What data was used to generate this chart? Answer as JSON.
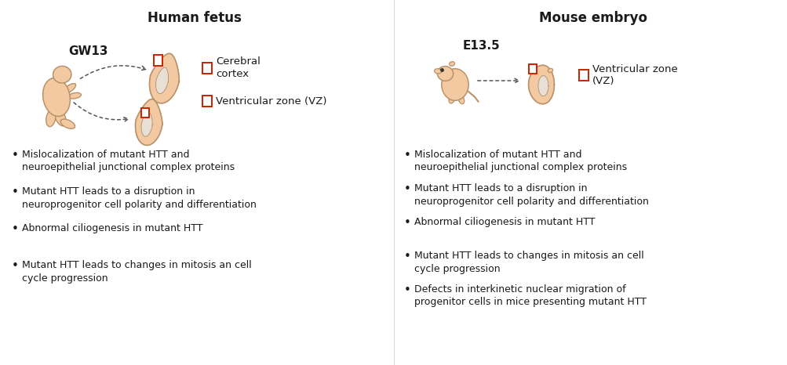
{
  "background_color": "#ffffff",
  "left_title": "Human fetus",
  "right_title": "Mouse embryo",
  "left_label": "GW13",
  "right_label": "E13.5",
  "left_legend_1": "Cerebral\ncortex",
  "left_legend_2": "Ventricular zone (VZ)",
  "right_legend_1": "Ventricular zone\n(VZ)",
  "skin_color": "#f2c9a0",
  "skin_edge_color": "#b8926a",
  "red_box_color": "#cc2200",
  "text_color": "#1a1a1a",
  "arrow_color": "#555555",
  "left_bullets": [
    "Mislocalization of mutant HTT and\nneuroepithelial junctional complex proteins",
    "Mutant HTT leads to a disruption in\nneuroprogenitor cell polarity and differentiation",
    "Abnormal ciliogenesis in mutant HTT",
    "Mutant HTT leads to changes in mitosis an cell\ncycle progression"
  ],
  "right_bullets": [
    "Mislocalization of mutant HTT and\nneuroepithelial junctional complex proteins",
    "Mutant HTT leads to a disruption in\nneuroprogenitor cell polarity and differentiation",
    "Abnormal ciliogenesis in mutant HTT",
    "Mutant HTT leads to changes in mitosis an cell\ncycle progression",
    "Defects in interkinetic nuclear migration of\nprogenitor cells in mice presenting mutant HTT"
  ],
  "title_fontsize": 12,
  "label_fontsize": 10,
  "bullet_fontsize": 9,
  "legend_fontsize": 9.5
}
